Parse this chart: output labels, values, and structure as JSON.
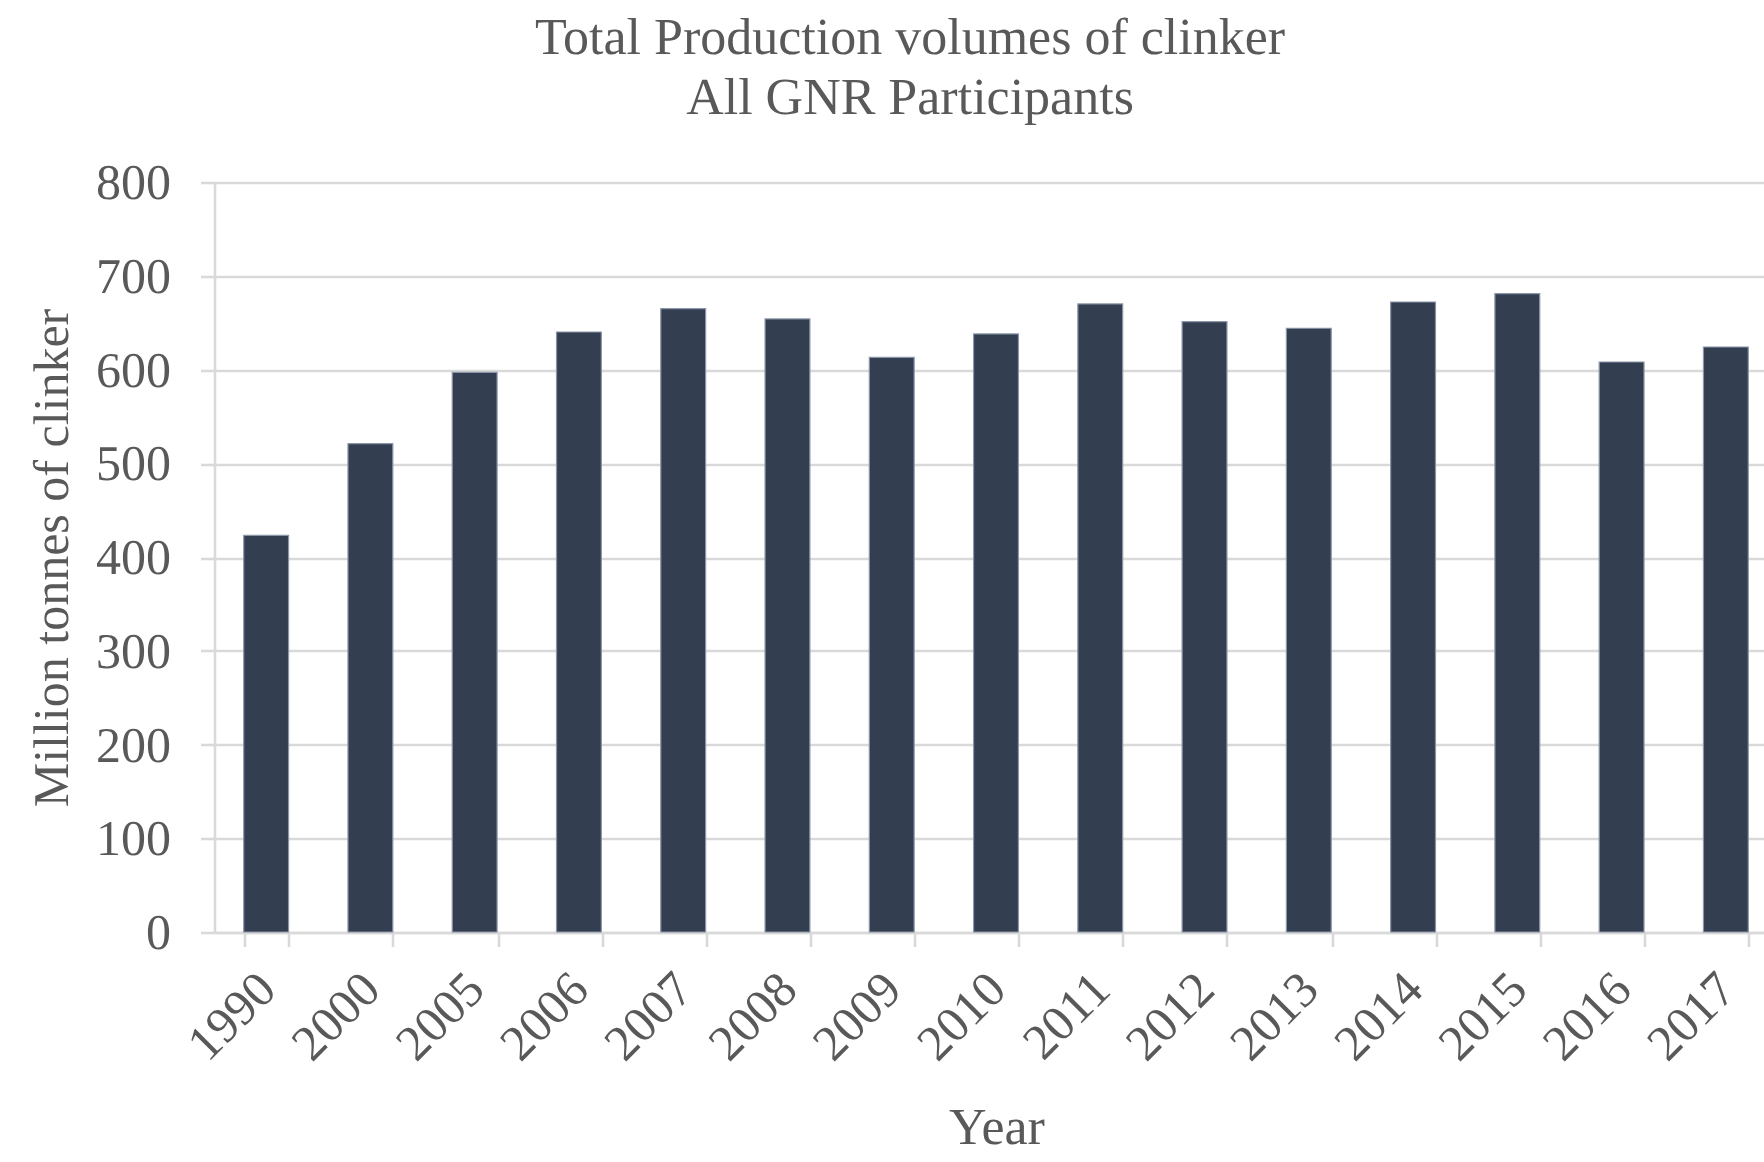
{
  "chart_data": {
    "type": "bar",
    "title": "Total Production volumes of clinker",
    "subtitle": "All GNR Participants",
    "xlabel": "Year",
    "ylabel": "Million tonnes of clinker",
    "categories": [
      "1990",
      "2000",
      "2005",
      "2006",
      "2007",
      "2008",
      "2009",
      "2010",
      "2011",
      "2012",
      "2013",
      "2014",
      "2015",
      "2016",
      "2017"
    ],
    "values": [
      423,
      521,
      597,
      640,
      665,
      654,
      613,
      638,
      670,
      651,
      644,
      672,
      681,
      608,
      624
    ],
    "color": "#333f50",
    "ylim": [
      0,
      800
    ],
    "yticks": [
      0,
      100,
      200,
      300,
      400,
      500,
      600,
      700,
      800
    ],
    "grid": "y"
  }
}
